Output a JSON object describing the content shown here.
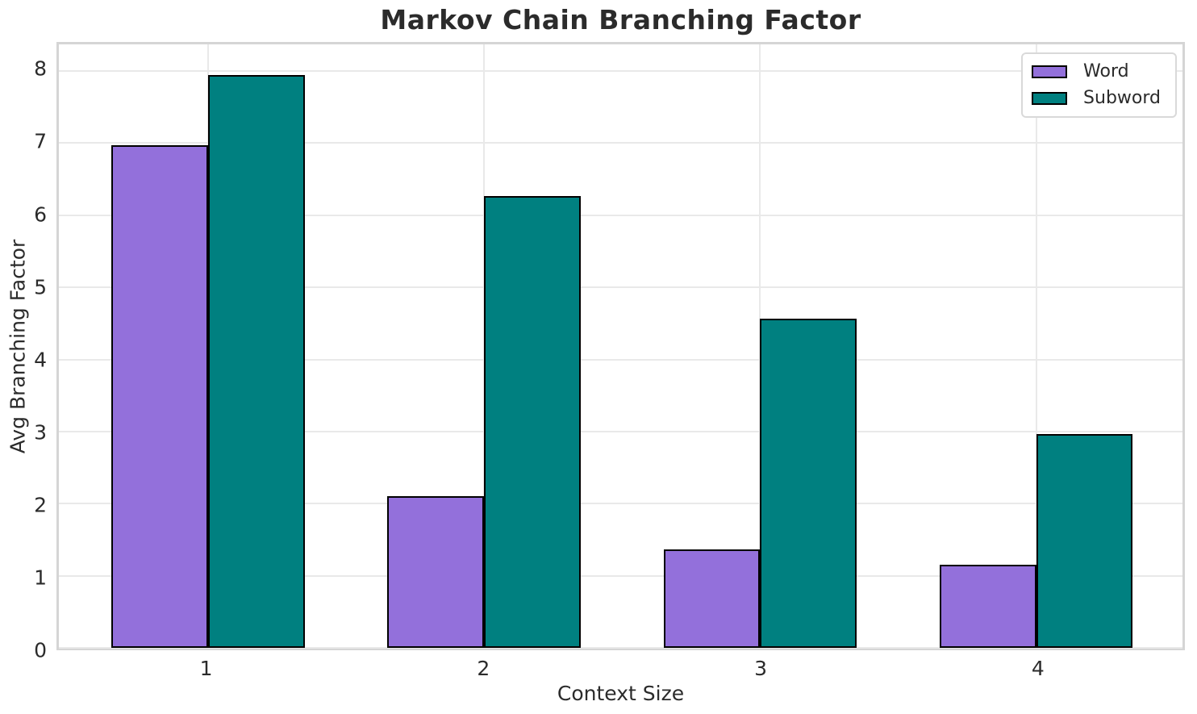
{
  "chart_data": {
    "type": "bar",
    "title": "Markov Chain Branching Factor",
    "xlabel": "Context Size",
    "ylabel": "Avg Branching Factor",
    "categories": [
      "1",
      "2",
      "3",
      "4"
    ],
    "series": [
      {
        "name": "Word",
        "color": "#9370DB",
        "values": [
          6.97,
          2.1,
          1.37,
          1.15
        ]
      },
      {
        "name": "Subword",
        "color": "#008080",
        "values": [
          7.95,
          6.27,
          4.57,
          2.96
        ]
      }
    ],
    "bar_width": 0.35,
    "bar_edge_color": "#000000",
    "yticks": [
      0,
      1,
      2,
      3,
      4,
      5,
      6,
      7,
      8
    ],
    "ylim": [
      0,
      8.37
    ],
    "xlim": [
      0.46,
      4.53
    ],
    "grid": true,
    "legend_position": "upper right"
  },
  "colors": {
    "background": "#ffffff",
    "grid": "#e9e9e9",
    "spine": "#d5d5d5",
    "text": "#2b2b2b",
    "legend_border": "#d9d9d9"
  }
}
